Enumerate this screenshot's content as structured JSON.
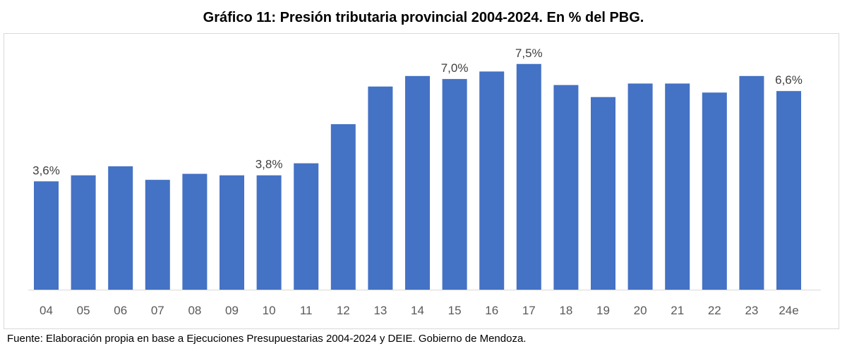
{
  "chart_data": {
    "type": "bar",
    "title": "Gráfico 11: Presión tributaria provincial 2004-2024. En % del PBG.",
    "xlabel": "",
    "ylabel": "",
    "ylim": [
      0,
      8
    ],
    "grid": false,
    "categories": [
      "04",
      "05",
      "06",
      "07",
      "08",
      "09",
      "10",
      "11",
      "12",
      "13",
      "14",
      "15",
      "16",
      "17",
      "18",
      "19",
      "20",
      "21",
      "22",
      "23",
      "24e"
    ],
    "values": [
      3.6,
      3.8,
      4.1,
      3.65,
      3.85,
      3.8,
      3.8,
      4.2,
      5.5,
      6.75,
      7.1,
      7.0,
      7.25,
      7.5,
      6.8,
      6.4,
      6.85,
      6.85,
      6.55,
      7.1,
      6.6
    ],
    "data_labels": {
      "04": "3,6%",
      "10": "3,8%",
      "15": "7,0%",
      "17": "7,5%",
      "24e": "6,6%"
    },
    "bar_color": "#4472c4",
    "source": "Fuente: Elaboración propia en base a Ejecuciones Presupuestarias 2004-2024 y DEIE. Gobierno de Mendoza."
  }
}
